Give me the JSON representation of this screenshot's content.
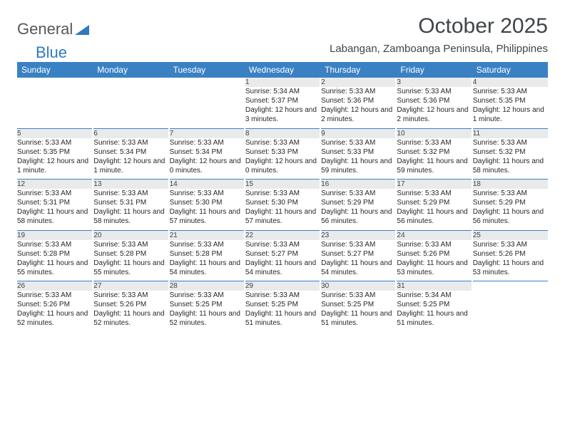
{
  "logo": {
    "text1": "General",
    "text2": "Blue",
    "triangle_color": "#2f7abf"
  },
  "title": "October 2025",
  "subtitle": "Labangan, Zamboanga Peninsula, Philippines",
  "colors": {
    "header_bg": "#3a81c4",
    "header_text": "#ffffff",
    "daynum_bg": "#e9eaeb",
    "divider": "#3a81c4",
    "body_text": "#272727",
    "title_text": "#404448"
  },
  "fonts": {
    "title_size": 30,
    "subtitle_size": 15,
    "header_size": 12,
    "daynum_size": 12,
    "body_size": 10
  },
  "day_headers": [
    "Sunday",
    "Monday",
    "Tuesday",
    "Wednesday",
    "Thursday",
    "Friday",
    "Saturday"
  ],
  "weeks": [
    [
      null,
      null,
      null,
      {
        "n": "1",
        "sr": "Sunrise: 5:34 AM",
        "ss": "Sunset: 5:37 PM",
        "dl": "Daylight: 12 hours and 3 minutes."
      },
      {
        "n": "2",
        "sr": "Sunrise: 5:33 AM",
        "ss": "Sunset: 5:36 PM",
        "dl": "Daylight: 12 hours and 2 minutes."
      },
      {
        "n": "3",
        "sr": "Sunrise: 5:33 AM",
        "ss": "Sunset: 5:36 PM",
        "dl": "Daylight: 12 hours and 2 minutes."
      },
      {
        "n": "4",
        "sr": "Sunrise: 5:33 AM",
        "ss": "Sunset: 5:35 PM",
        "dl": "Daylight: 12 hours and 1 minute."
      }
    ],
    [
      {
        "n": "5",
        "sr": "Sunrise: 5:33 AM",
        "ss": "Sunset: 5:35 PM",
        "dl": "Daylight: 12 hours and 1 minute."
      },
      {
        "n": "6",
        "sr": "Sunrise: 5:33 AM",
        "ss": "Sunset: 5:34 PM",
        "dl": "Daylight: 12 hours and 1 minute."
      },
      {
        "n": "7",
        "sr": "Sunrise: 5:33 AM",
        "ss": "Sunset: 5:34 PM",
        "dl": "Daylight: 12 hours and 0 minutes."
      },
      {
        "n": "8",
        "sr": "Sunrise: 5:33 AM",
        "ss": "Sunset: 5:33 PM",
        "dl": "Daylight: 12 hours and 0 minutes."
      },
      {
        "n": "9",
        "sr": "Sunrise: 5:33 AM",
        "ss": "Sunset: 5:33 PM",
        "dl": "Daylight: 11 hours and 59 minutes."
      },
      {
        "n": "10",
        "sr": "Sunrise: 5:33 AM",
        "ss": "Sunset: 5:32 PM",
        "dl": "Daylight: 11 hours and 59 minutes."
      },
      {
        "n": "11",
        "sr": "Sunrise: 5:33 AM",
        "ss": "Sunset: 5:32 PM",
        "dl": "Daylight: 11 hours and 58 minutes."
      }
    ],
    [
      {
        "n": "12",
        "sr": "Sunrise: 5:33 AM",
        "ss": "Sunset: 5:31 PM",
        "dl": "Daylight: 11 hours and 58 minutes."
      },
      {
        "n": "13",
        "sr": "Sunrise: 5:33 AM",
        "ss": "Sunset: 5:31 PM",
        "dl": "Daylight: 11 hours and 58 minutes."
      },
      {
        "n": "14",
        "sr": "Sunrise: 5:33 AM",
        "ss": "Sunset: 5:30 PM",
        "dl": "Daylight: 11 hours and 57 minutes."
      },
      {
        "n": "15",
        "sr": "Sunrise: 5:33 AM",
        "ss": "Sunset: 5:30 PM",
        "dl": "Daylight: 11 hours and 57 minutes."
      },
      {
        "n": "16",
        "sr": "Sunrise: 5:33 AM",
        "ss": "Sunset: 5:29 PM",
        "dl": "Daylight: 11 hours and 56 minutes."
      },
      {
        "n": "17",
        "sr": "Sunrise: 5:33 AM",
        "ss": "Sunset: 5:29 PM",
        "dl": "Daylight: 11 hours and 56 minutes."
      },
      {
        "n": "18",
        "sr": "Sunrise: 5:33 AM",
        "ss": "Sunset: 5:29 PM",
        "dl": "Daylight: 11 hours and 56 minutes."
      }
    ],
    [
      {
        "n": "19",
        "sr": "Sunrise: 5:33 AM",
        "ss": "Sunset: 5:28 PM",
        "dl": "Daylight: 11 hours and 55 minutes."
      },
      {
        "n": "20",
        "sr": "Sunrise: 5:33 AM",
        "ss": "Sunset: 5:28 PM",
        "dl": "Daylight: 11 hours and 55 minutes."
      },
      {
        "n": "21",
        "sr": "Sunrise: 5:33 AM",
        "ss": "Sunset: 5:28 PM",
        "dl": "Daylight: 11 hours and 54 minutes."
      },
      {
        "n": "22",
        "sr": "Sunrise: 5:33 AM",
        "ss": "Sunset: 5:27 PM",
        "dl": "Daylight: 11 hours and 54 minutes."
      },
      {
        "n": "23",
        "sr": "Sunrise: 5:33 AM",
        "ss": "Sunset: 5:27 PM",
        "dl": "Daylight: 11 hours and 54 minutes."
      },
      {
        "n": "24",
        "sr": "Sunrise: 5:33 AM",
        "ss": "Sunset: 5:26 PM",
        "dl": "Daylight: 11 hours and 53 minutes."
      },
      {
        "n": "25",
        "sr": "Sunrise: 5:33 AM",
        "ss": "Sunset: 5:26 PM",
        "dl": "Daylight: 11 hours and 53 minutes."
      }
    ],
    [
      {
        "n": "26",
        "sr": "Sunrise: 5:33 AM",
        "ss": "Sunset: 5:26 PM",
        "dl": "Daylight: 11 hours and 52 minutes."
      },
      {
        "n": "27",
        "sr": "Sunrise: 5:33 AM",
        "ss": "Sunset: 5:26 PM",
        "dl": "Daylight: 11 hours and 52 minutes."
      },
      {
        "n": "28",
        "sr": "Sunrise: 5:33 AM",
        "ss": "Sunset: 5:25 PM",
        "dl": "Daylight: 11 hours and 52 minutes."
      },
      {
        "n": "29",
        "sr": "Sunrise: 5:33 AM",
        "ss": "Sunset: 5:25 PM",
        "dl": "Daylight: 11 hours and 51 minutes."
      },
      {
        "n": "30",
        "sr": "Sunrise: 5:33 AM",
        "ss": "Sunset: 5:25 PM",
        "dl": "Daylight: 11 hours and 51 minutes."
      },
      {
        "n": "31",
        "sr": "Sunrise: 5:34 AM",
        "ss": "Sunset: 5:25 PM",
        "dl": "Daylight: 11 hours and 51 minutes."
      },
      null
    ]
  ]
}
